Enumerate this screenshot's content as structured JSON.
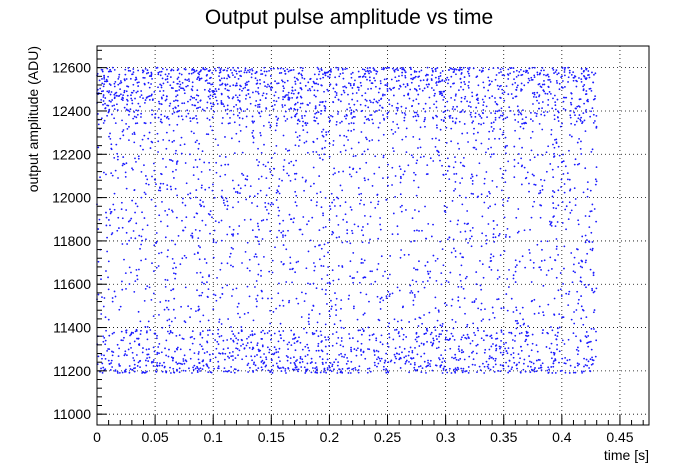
{
  "chart_data": {
    "type": "scatter",
    "title": "Output pulse amplitude vs time",
    "xlabel": "time [s]",
    "ylabel": "output amplitude (ADU)",
    "xlim": [
      0,
      0.475
    ],
    "ylim": [
      10950,
      12700
    ],
    "x_ticks": [
      0,
      0.05,
      0.1,
      0.15,
      0.2,
      0.25,
      0.3,
      0.35,
      0.4,
      0.45
    ],
    "x_tick_labels": [
      "0",
      "0.05",
      "0.1",
      "0.15",
      "0.2",
      "0.25",
      "0.3",
      "0.35",
      "0.4",
      "0.45"
    ],
    "y_ticks": [
      11000,
      11200,
      11400,
      11600,
      11800,
      12000,
      12200,
      12400,
      12600
    ],
    "y_tick_labels": [
      "11000",
      "11200",
      "11400",
      "11600",
      "11800",
      "12000",
      "12200",
      "12400",
      "12600"
    ],
    "grid": true,
    "marker_color": "#1a1aff",
    "series": [
      {
        "x_range": [
          0.0,
          0.43
        ],
        "y_range": [
          11190,
          12600
        ],
        "points": [
          [
            0.011,
            12583
          ],
          [
            0.024,
            12541
          ],
          [
            0.038,
            12492
          ],
          [
            0.047,
            12571
          ],
          [
            0.059,
            12448
          ],
          [
            0.071,
            12512
          ],
          [
            0.083,
            12590
          ],
          [
            0.096,
            12466
          ],
          [
            0.108,
            12527
          ],
          [
            0.121,
            12409
          ],
          [
            0.133,
            12555
          ],
          [
            0.146,
            12479
          ],
          [
            0.158,
            12596
          ],
          [
            0.171,
            12433
          ],
          [
            0.183,
            12502
          ],
          [
            0.196,
            12578
          ],
          [
            0.208,
            12451
          ],
          [
            0.221,
            12519
          ],
          [
            0.233,
            12587
          ],
          [
            0.246,
            12471
          ],
          [
            0.258,
            12538
          ],
          [
            0.271,
            12422
          ],
          [
            0.283,
            12563
          ],
          [
            0.296,
            12489
          ],
          [
            0.308,
            12594
          ],
          [
            0.321,
            12441
          ],
          [
            0.333,
            12508
          ],
          [
            0.346,
            12576
          ],
          [
            0.358,
            12459
          ],
          [
            0.371,
            12531
          ],
          [
            0.383,
            12413
          ],
          [
            0.396,
            12569
          ],
          [
            0.408,
            12483
          ],
          [
            0.421,
            12591
          ],
          [
            0.019,
            11231
          ],
          [
            0.052,
            11284
          ],
          [
            0.089,
            11212
          ],
          [
            0.127,
            11305
          ],
          [
            0.164,
            11247
          ],
          [
            0.202,
            11198
          ],
          [
            0.239,
            11273
          ],
          [
            0.277,
            11219
          ],
          [
            0.314,
            11296
          ],
          [
            0.352,
            11238
          ],
          [
            0.389,
            11207
          ],
          [
            0.426,
            11262
          ],
          [
            0.033,
            11812
          ],
          [
            0.117,
            11955
          ],
          [
            0.211,
            11684
          ],
          [
            0.298,
            12106
          ],
          [
            0.374,
            11521
          ],
          [
            0.141,
            12287
          ],
          [
            0.256,
            11438
          ],
          [
            0.401,
            12199
          ]
        ]
      }
    ]
  }
}
